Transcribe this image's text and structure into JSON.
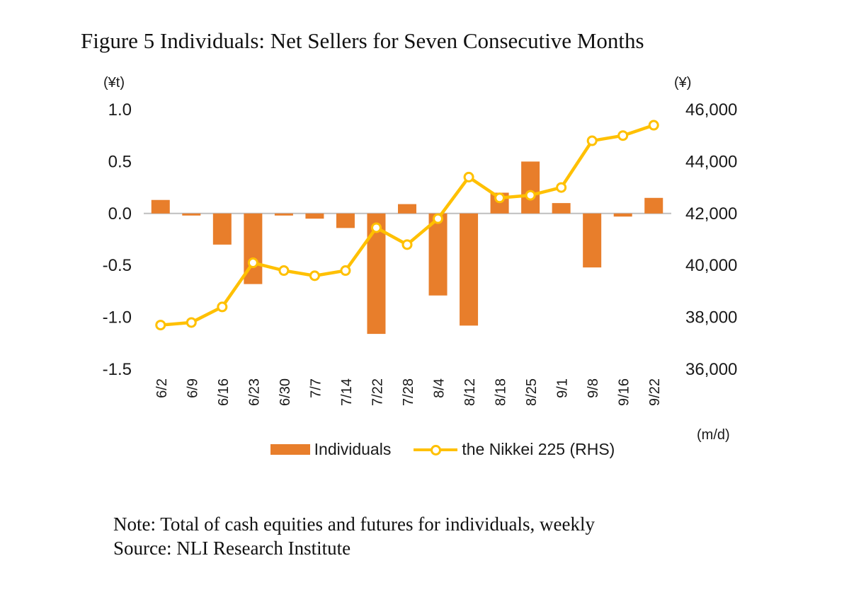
{
  "figure": {
    "title": "Figure 5 Individuals: Net Sellers for Seven Consecutive Months",
    "note": "Note: Total of cash equities and futures for individuals, weekly",
    "source": "Source: NLI Research Institute"
  },
  "chart_data": {
    "type": "bar+line",
    "categories": [
      "6/2",
      "6/9",
      "6/16",
      "6/23",
      "6/30",
      "7/7",
      "7/14",
      "7/22",
      "7/28",
      "8/4",
      "8/12",
      "8/18",
      "8/25",
      "9/1",
      "9/8",
      "9/16",
      "9/22"
    ],
    "series": [
      {
        "name": "Individuals",
        "type": "bar",
        "axis": "left",
        "color": "#E87E2B",
        "values": [
          0.13,
          -0.02,
          -0.3,
          -0.68,
          -0.02,
          -0.05,
          -0.14,
          -1.16,
          0.09,
          -0.79,
          -1.08,
          0.2,
          0.5,
          0.1,
          -0.52,
          -0.03,
          0.15
        ]
      },
      {
        "name": "the Nikkei 225 (RHS)",
        "type": "line",
        "axis": "right",
        "color": "#FFC000",
        "marker_fill": "#FFFFFF",
        "values": [
          37700,
          37800,
          38400,
          40100,
          39800,
          39600,
          39800,
          41450,
          40800,
          41800,
          43400,
          42600,
          42700,
          43000,
          44800,
          45000,
          45400
        ]
      }
    ],
    "left_axis": {
      "label": "(¥t)",
      "min": -1.5,
      "max": 1.0,
      "ticks": [
        1.0,
        0.5,
        0.0,
        -0.5,
        -1.0,
        -1.5
      ],
      "tick_labels": [
        "1.0",
        "0.5",
        "0.0",
        "-0.5",
        "-1.0",
        "-1.5"
      ]
    },
    "right_axis": {
      "label": "(¥)",
      "min": 36000,
      "max": 46000,
      "ticks": [
        46000,
        44000,
        42000,
        40000,
        38000,
        36000
      ],
      "tick_labels": [
        "46,000",
        "44,000",
        "42,000",
        "40,000",
        "38,000",
        "36,000"
      ]
    },
    "x_axis_label": "(m/d)",
    "legend": [
      "Individuals",
      "the Nikkei 225 (RHS)"
    ],
    "legend_position": "bottom-center",
    "grid": "zero-line-only",
    "gridline_color": "#BFBFBF"
  }
}
